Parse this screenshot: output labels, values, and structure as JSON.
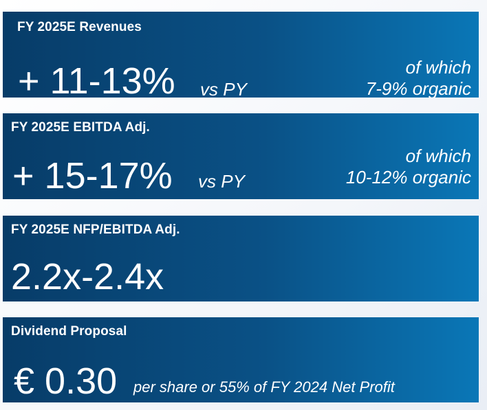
{
  "cards": [
    {
      "title": "FY 2025E Revenues",
      "value": "+ 11-13%",
      "suffix": "vs PY",
      "note_line1": "of which",
      "note_line2": "7-9% organic"
    },
    {
      "title": "FY 2025E EBITDA Adj.",
      "value": "+ 15-17%",
      "suffix": "vs PY",
      "note_line1": "of which",
      "note_line2": "10-12% organic"
    },
    {
      "title": "FY 2025E NFP/EBITDA Adj.",
      "value": "2.2x-2.4x"
    },
    {
      "title": "Dividend Proposal",
      "value": "€ 0.30",
      "suffix": "per share or 55% of FY 2024 Net Profit"
    }
  ],
  "colors": {
    "card_gradient_start": "#073c68",
    "card_gradient_end": "#0a77b7",
    "text": "#ffffff"
  }
}
